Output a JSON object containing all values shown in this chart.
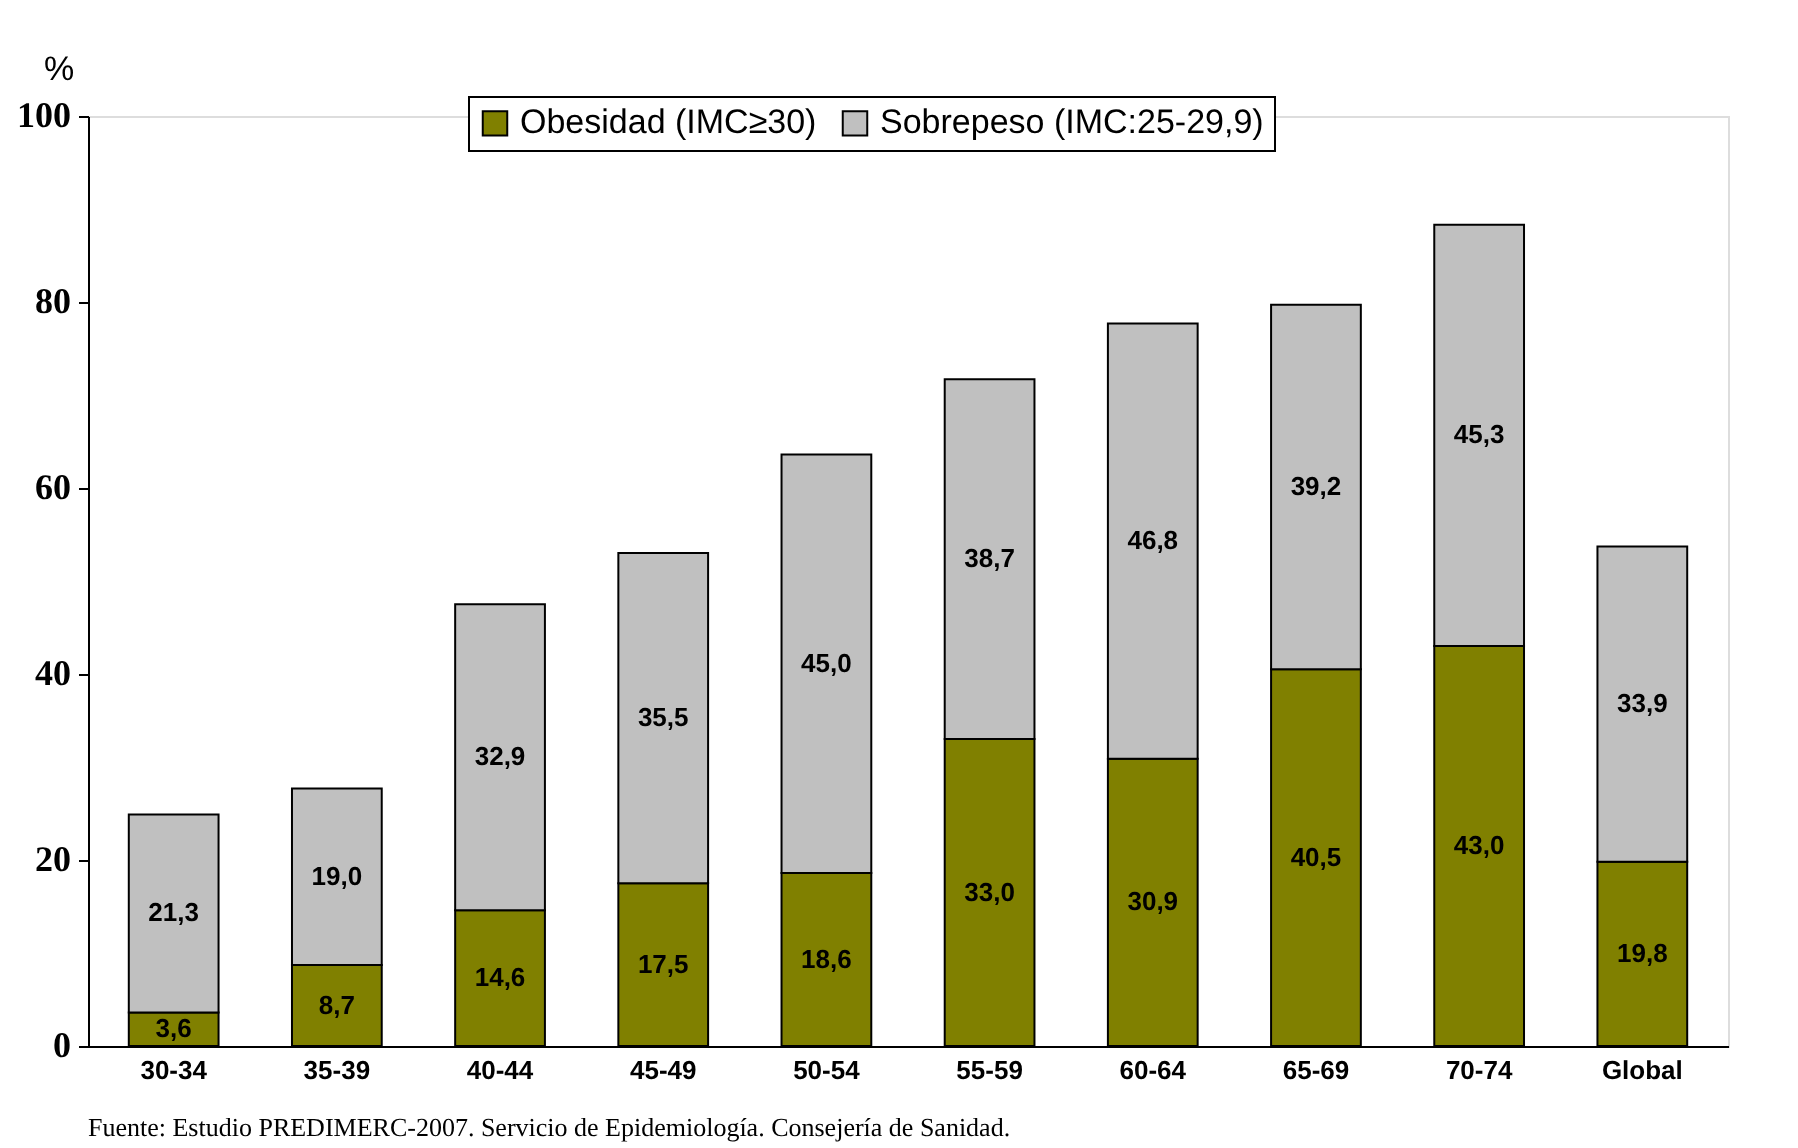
{
  "chart_data": {
    "type": "bar",
    "stacked": true,
    "ylabel": "%",
    "categories": [
      "30-34",
      "35-39",
      "40-44",
      "45-49",
      "50-54",
      "55-59",
      "60-64",
      "65-69",
      "70-74",
      "Global"
    ],
    "series": [
      {
        "name": "Obesidad (IMC≥30)",
        "color": "#808000",
        "values": [
          3.6,
          8.7,
          14.6,
          17.5,
          18.6,
          33.0,
          30.9,
          40.5,
          43.0,
          19.8
        ],
        "value_labels": [
          "3,6",
          "8,7",
          "14,6",
          "17,5",
          "18,6",
          "33,0",
          "30,9",
          "40,5",
          "43,0",
          "19,8"
        ]
      },
      {
        "name": "Sobrepeso (IMC:25-29,9)",
        "color": "#c0c0c0",
        "values": [
          21.3,
          19.0,
          32.9,
          35.5,
          45.0,
          38.7,
          46.8,
          39.2,
          45.3,
          33.9
        ],
        "value_labels": [
          "21,3",
          "19,0",
          "32,9",
          "35,5",
          "45,0",
          "38,7",
          "46,8",
          "39,2",
          "45,3",
          "33,9"
        ]
      }
    ],
    "ylim": [
      0,
      100
    ],
    "yticks": [
      0,
      20,
      40,
      60,
      80,
      100
    ],
    "grid": false,
    "legend": "top",
    "annotations": [
      "Fuente: Estudio PREDIMERC-2007.  Servicio de Epidemiología. Consejería de Sanidad."
    ]
  }
}
